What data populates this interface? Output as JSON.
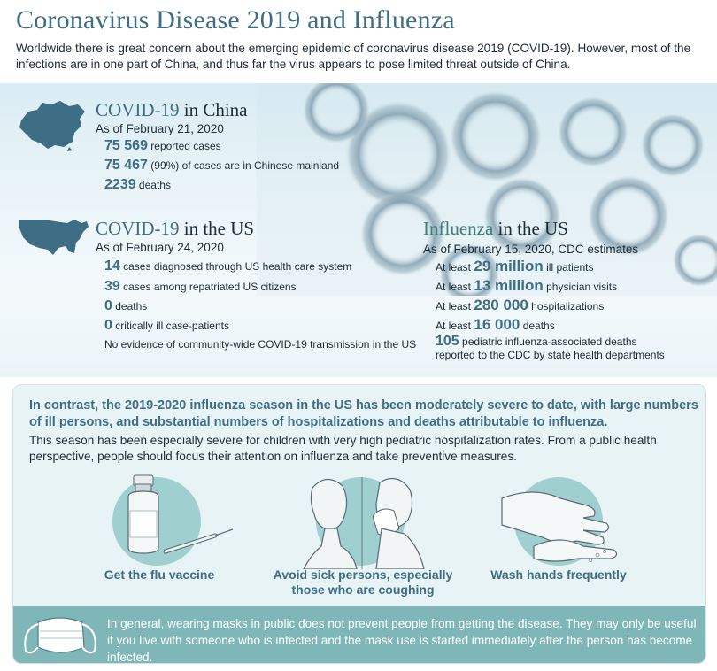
{
  "title": "Coronavirus Disease 2019 and Influenza",
  "intro": "Worldwide there is great concern about the emerging epidemic of coronavirus disease 2019 (COVID-19). However, most of the infections are in one part of China, and thus far the virus appears to pose limited threat outside of China.",
  "china": {
    "title_highlight": "COVID-19",
    "title_rest": " in China",
    "as_of": "As of February 21, 2020",
    "stats": [
      {
        "num": "75 569",
        "text": " reported cases"
      },
      {
        "num": "75 467",
        "text": " (99%) of cases are in Chinese mainland"
      },
      {
        "num": "2239",
        "text": " deaths"
      }
    ]
  },
  "us": {
    "title_highlight": "COVID-19",
    "title_rest": " in the US",
    "as_of": "As of February 24, 2020",
    "stats": [
      {
        "num": "14",
        "text": " cases diagnosed through US health care system"
      },
      {
        "num": "39",
        "text": " cases among repatriated US citizens"
      },
      {
        "num": "0",
        "text": " deaths"
      },
      {
        "num": "0",
        "text": " critically ill case-patients"
      }
    ],
    "note": "No evidence of community-wide COVID-19 transmission in the US"
  },
  "flu": {
    "title_highlight": "Influenza",
    "title_rest": " in the US",
    "as_of": "As of February 15, 2020, CDC estimates",
    "stats": [
      {
        "pre": "At least ",
        "num": "29 million",
        "text": " ill patients"
      },
      {
        "pre": "At least ",
        "num": "13 million",
        "text": " physician visits"
      },
      {
        "pre": "At least ",
        "num": "280 000",
        "text": " hospitalizations"
      },
      {
        "pre": "At least ",
        "num": "16 000",
        "text": " deaths"
      }
    ],
    "pediatric_num": "105",
    "pediatric_line1": " pediatric influenza-associated deaths",
    "pediatric_line2": "reported to the CDC by state health departments"
  },
  "contrast_bold": "In contrast, the 2019-2020 influenza season in the US has been moderately severe to date, with large numbers of ill persons, and substantial numbers of hospitalizations and deaths attributable to influenza.",
  "contrast_body": "This season has been especially severe for children with very high pediatric hospitalization rates. From a public health perspective, people should focus their attention on influenza and take preventive measures.",
  "tips": [
    {
      "label": "Get the flu vaccine",
      "icon": "vaccine-icon"
    },
    {
      "label": "Avoid sick persons, especially those who are coughing",
      "icon": "sick-person-icon"
    },
    {
      "label": "Wash hands frequently",
      "icon": "hand-wash-icon"
    }
  ],
  "mask_note": "In general, wearing masks in public does not prevent people from getting the disease. They may only be useful if you live with someone who is infected and the mask use is started immediately after the person has become infected.",
  "colors": {
    "accent": "#3e6e86",
    "teal": "#7fb7b8",
    "panel": "#e7f3f5"
  }
}
